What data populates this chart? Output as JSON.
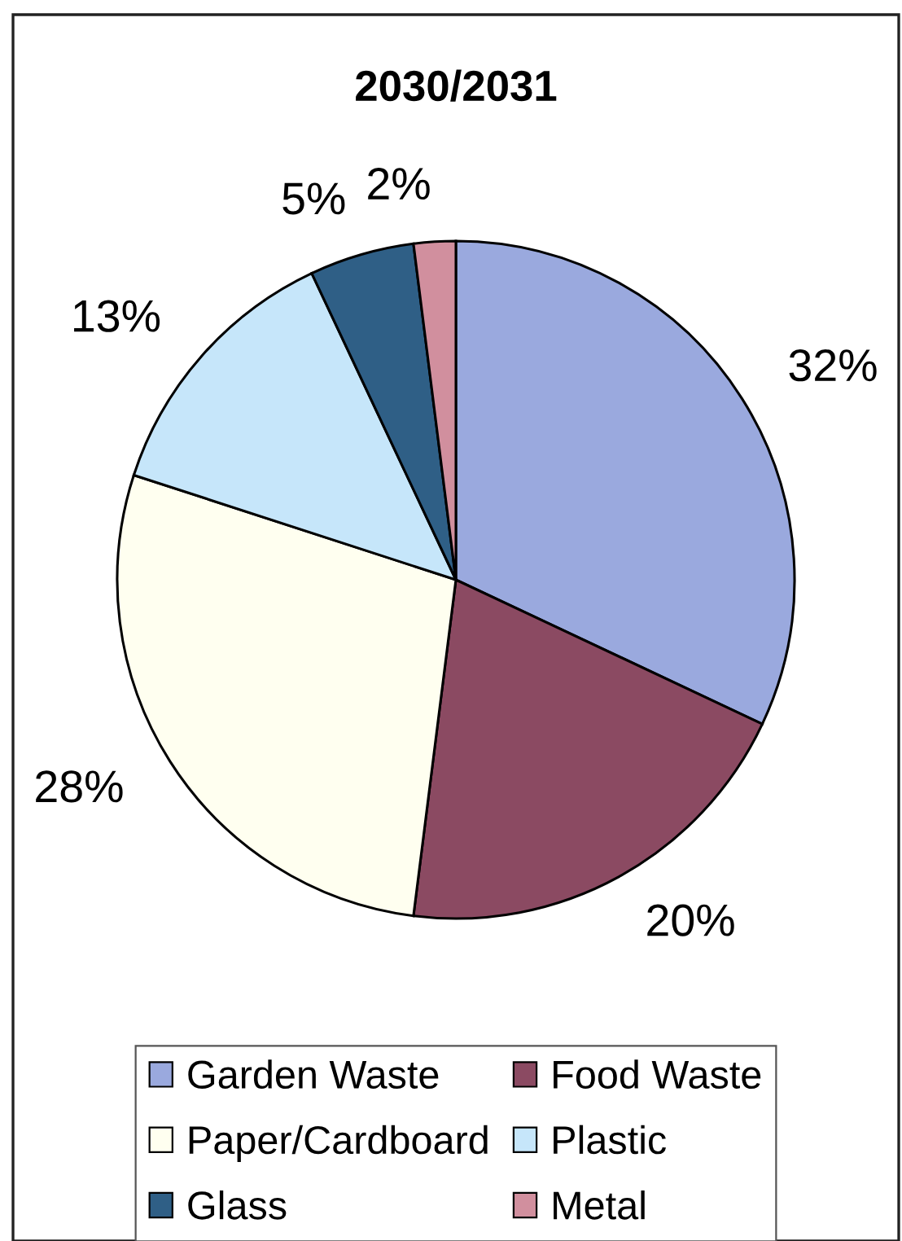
{
  "chart_data": {
    "type": "pie",
    "title": "2030/2031",
    "categories": [
      "Garden Waste",
      "Food Waste",
      "Paper/Cardboard",
      "Plastic",
      "Glass",
      "Metal"
    ],
    "values": [
      32,
      20,
      28,
      13,
      5,
      2
    ],
    "colors": [
      "#9aa9de",
      "#8b4a62",
      "#fffff0",
      "#c6e6fa",
      "#2f5f86",
      "#d18f9e"
    ],
    "value_labels": [
      "32%",
      "20%",
      "28%",
      "13%",
      "5%",
      "2%"
    ],
    "legend": "bottom"
  }
}
